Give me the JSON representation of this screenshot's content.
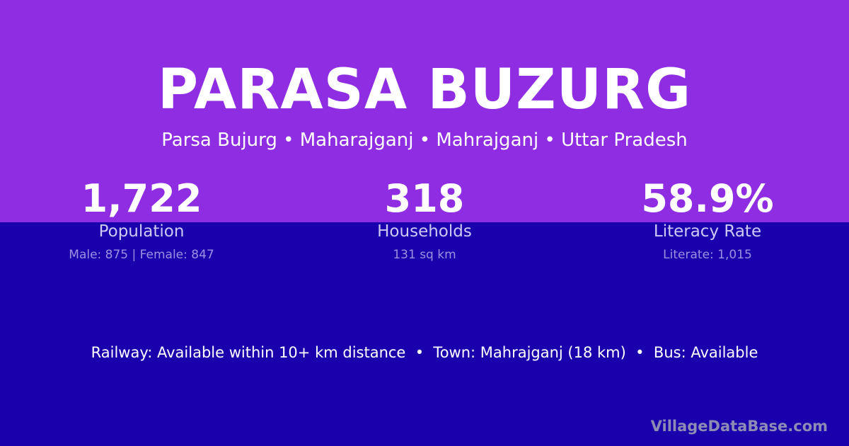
{
  "colors": {
    "top_band": "#8e2de2",
    "bottom_band": "#1a00ad"
  },
  "title": "PARASA BUZURG",
  "subtitle": "Parsa Bujurg • Maharajganj • Mahrajganj • Uttar Pradesh",
  "stats": [
    {
      "value": "1,722",
      "label": "Population",
      "detail": "Male: 875 | Female: 847"
    },
    {
      "value": "318",
      "label": "Households",
      "detail": "131 sq km"
    },
    {
      "value": "58.9%",
      "label": "Literacy Rate",
      "detail": "Literate: 1,015"
    }
  ],
  "transport": "Railway: Available within 10+ km distance  •  Town: Mahrajganj (18 km)  •  Bus: Available",
  "brand": "VillageDataBase.com"
}
